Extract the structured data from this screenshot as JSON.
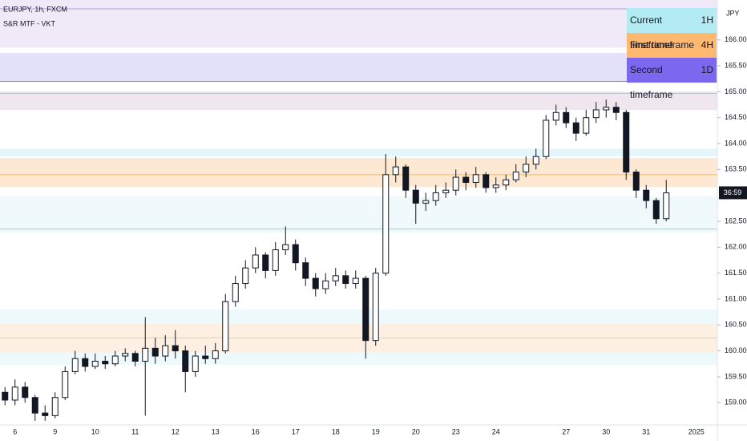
{
  "chart_data": {
    "type": "candlestick",
    "title": "EURJPY, 1h, FXCM",
    "subtitle": "S&R MTF - VKT",
    "y_axis_label": "JPY",
    "last_price_label": "36:59",
    "candle_color": "#131722",
    "ylim": [
      158.57,
      166.77
    ],
    "yticks": [
      {
        "value": 159,
        "label": "159.000"
      },
      {
        "value": 159.5,
        "label": "159.500"
      },
      {
        "value": 160,
        "label": "160.000"
      },
      {
        "value": 160.5,
        "label": "160.500"
      },
      {
        "value": 161,
        "label": "161.000"
      },
      {
        "value": 161.5,
        "label": "161.500"
      },
      {
        "value": 162,
        "label": "162.000"
      },
      {
        "value": 162.5,
        "label": "162.500"
      },
      {
        "value": 163.5,
        "label": "163.500"
      },
      {
        "value": 164,
        "label": "164.000"
      },
      {
        "value": 164.5,
        "label": "164.500"
      },
      {
        "value": 165,
        "label": "165.000"
      },
      {
        "value": 165.5,
        "label": "165.500"
      },
      {
        "value": 166,
        "label": "166.000"
      }
    ],
    "categories": [
      null,
      "6",
      null,
      null,
      null,
      "9",
      null,
      null,
      null,
      "10",
      null,
      null,
      null,
      "11",
      null,
      null,
      null,
      "12",
      null,
      null,
      null,
      "13",
      null,
      null,
      null,
      "16",
      null,
      null,
      null,
      "17",
      null,
      null,
      null,
      "18",
      null,
      null,
      null,
      "19",
      null,
      null,
      null,
      "20",
      null,
      null,
      null,
      "23",
      null,
      null,
      null,
      "24",
      null,
      null,
      null,
      null,
      null,
      null,
      "27",
      null,
      null,
      null,
      "30",
      null,
      null,
      null,
      "31",
      null,
      null,
      null,
      null,
      "2025",
      null,
      null
    ],
    "open": [
      159.2,
      159.05,
      159.3,
      159.1,
      158.8,
      158.75,
      159.1,
      159.6,
      159.85,
      159.7,
      159.8,
      159.75,
      159.9,
      159.95,
      159.8,
      160.05,
      159.9,
      160.1,
      160.0,
      159.6,
      159.9,
      159.85,
      160.0,
      160.95,
      161.3,
      161.6,
      161.85,
      161.55,
      161.95,
      162.05,
      161.7,
      161.4,
      161.2,
      161.35,
      161.45,
      161.3,
      161.4,
      160.2,
      161.5,
      163.4,
      163.55,
      163.1,
      162.85,
      162.9,
      163.05,
      163.1,
      163.35,
      163.25,
      163.4,
      163.15,
      163.2,
      163.3,
      163.45,
      163.6,
      163.75,
      164.45,
      164.6,
      164.4,
      164.2,
      164.5,
      164.65,
      164.7,
      164.6,
      163.45,
      163.1,
      162.9,
      162.55,
      null,
      null,
      null,
      null,
      null
    ],
    "high": [
      159.3,
      159.45,
      159.4,
      159.15,
      158.95,
      159.2,
      159.7,
      160.0,
      159.95,
      159.95,
      159.9,
      160.0,
      160.05,
      160.0,
      160.65,
      160.25,
      160.3,
      160.4,
      160.1,
      160.0,
      160.1,
      160.15,
      161.1,
      161.45,
      161.75,
      162.0,
      161.9,
      162.1,
      162.4,
      162.15,
      161.8,
      161.5,
      161.5,
      161.6,
      161.55,
      161.55,
      161.45,
      161.6,
      163.8,
      163.75,
      163.6,
      163.2,
      163.05,
      163.2,
      163.25,
      163.5,
      163.45,
      163.55,
      163.45,
      163.35,
      163.4,
      163.6,
      163.75,
      163.9,
      164.55,
      164.75,
      164.7,
      164.5,
      164.65,
      164.8,
      164.85,
      164.8,
      164.65,
      163.5,
      163.2,
      162.95,
      163.3,
      null,
      null,
      null,
      null,
      null
    ],
    "low": [
      158.95,
      158.95,
      159.0,
      158.65,
      158.65,
      158.7,
      159.05,
      159.55,
      159.6,
      159.65,
      159.65,
      159.7,
      159.8,
      159.7,
      158.75,
      159.75,
      159.8,
      159.85,
      159.2,
      159.5,
      159.75,
      159.75,
      159.95,
      160.85,
      161.2,
      161.5,
      161.4,
      161.45,
      161.85,
      161.55,
      161.25,
      161.05,
      161.1,
      161.25,
      161.2,
      161.2,
      159.85,
      160.1,
      161.45,
      163.25,
      162.95,
      162.45,
      162.7,
      162.8,
      162.95,
      163.0,
      163.1,
      163.15,
      163.05,
      163.05,
      163.1,
      163.25,
      163.35,
      163.5,
      163.7,
      164.35,
      164.3,
      164.05,
      164.15,
      164.4,
      164.5,
      164.45,
      163.3,
      162.95,
      162.75,
      162.45,
      162.5,
      null,
      null,
      null,
      null,
      null
    ],
    "close": [
      159.05,
      159.3,
      159.1,
      158.8,
      158.75,
      159.1,
      159.6,
      159.85,
      159.7,
      159.8,
      159.75,
      159.9,
      159.95,
      159.8,
      160.05,
      159.9,
      160.1,
      160.0,
      159.6,
      159.9,
      159.85,
      160.0,
      160.95,
      161.3,
      161.6,
      161.85,
      161.55,
      161.95,
      162.05,
      161.7,
      161.4,
      161.2,
      161.35,
      161.45,
      161.3,
      161.4,
      160.2,
      161.5,
      163.4,
      163.55,
      163.1,
      162.85,
      162.9,
      163.05,
      163.1,
      163.35,
      163.25,
      163.4,
      163.15,
      163.2,
      163.3,
      163.45,
      163.6,
      163.75,
      164.45,
      164.6,
      164.4,
      164.2,
      164.5,
      164.65,
      164.7,
      164.6,
      163.45,
      163.1,
      162.9,
      162.55,
      163.05,
      null,
      null,
      null,
      null,
      null
    ],
    "zones": [
      {
        "from": 165.85,
        "to": 166.77,
        "color": "#efe9f8"
      },
      {
        "from": 165.2,
        "to": 165.75,
        "color": "#e4e2fb"
      },
      {
        "from": 164.65,
        "to": 165.0,
        "color": "#efe6ee"
      },
      {
        "from": 163.75,
        "to": 163.9,
        "color": "#e6f7fb"
      },
      {
        "from": 163.16,
        "to": 163.72,
        "color": "#fde8d3"
      },
      {
        "from": 162.28,
        "to": 162.98,
        "color": "#f0fafd"
      },
      {
        "from": 160.53,
        "to": 160.8,
        "color": "#eef9fc"
      },
      {
        "from": 159.96,
        "to": 160.53,
        "color": "#fdf0e3"
      },
      {
        "from": 159.73,
        "to": 159.96,
        "color": "#eef9fc"
      }
    ],
    "lines": [
      {
        "value": 166.6,
        "color": "#b39ddb"
      },
      {
        "value": 165.2,
        "color": "#9575cd"
      },
      {
        "value": 164.97,
        "color": "#b0bec5"
      },
      {
        "value": 163.4,
        "color": "#ffb74d"
      },
      {
        "value": 162.35,
        "color": "#80deea"
      },
      {
        "value": 160.25,
        "color": "#ffcc80"
      }
    ],
    "legend_table": [
      {
        "label": "Current timeframe",
        "value": "1H",
        "color": "#b2ebf2"
      },
      {
        "label": "First timeframe",
        "value": "4H",
        "color": "#ffb870"
      },
      {
        "label": "Second timeframe",
        "value": "1D",
        "color": "#7b68ee"
      }
    ]
  }
}
